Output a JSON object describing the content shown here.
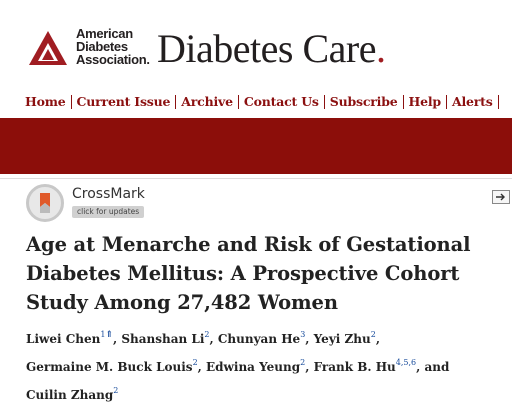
{
  "header": {
    "org_line1": "American",
    "org_line2": "Diabetes",
    "org_line3": "Association.",
    "journal_name": "Diabetes Care",
    "journal_dot": ".",
    "brand_color": "#a01d22"
  },
  "nav": {
    "items": [
      {
        "label": "Home"
      },
      {
        "label": "Current Issue"
      },
      {
        "label": "Archive"
      },
      {
        "label": "Contact Us"
      },
      {
        "label": "Subscribe"
      },
      {
        "label": "Help"
      },
      {
        "label": "Alerts"
      }
    ],
    "band_color": "#8c0e0a"
  },
  "crossmark": {
    "label": "CrossMark",
    "badge": "click for updates",
    "icon": "crossmark-icon"
  },
  "article": {
    "title_line1": "Age at Menarche and Risk of Gestational",
    "title_line2": "Diabetes Mellitus: A Prospective Cohort",
    "title_line3": "Study Among 27,482 Women",
    "authors": [
      {
        "name": "Liwei Chen",
        "aff": "1"
      },
      {
        "name": "Shanshan Li",
        "aff": "2"
      },
      {
        "name": "Chunyan He",
        "aff": "3"
      },
      {
        "name": "Yeyi Zhu",
        "aff": "2"
      },
      {
        "name": "Germaine M. Buck Louis",
        "aff": "2"
      },
      {
        "name": "Edwina Yeung",
        "aff": "2"
      },
      {
        "name": "Frank B. Hu",
        "aff": "4,5,6"
      },
      {
        "name": "Cuilin Zhang",
        "aff": "2"
      }
    ],
    "corr_icon": "⇑",
    "and_text": "and"
  }
}
